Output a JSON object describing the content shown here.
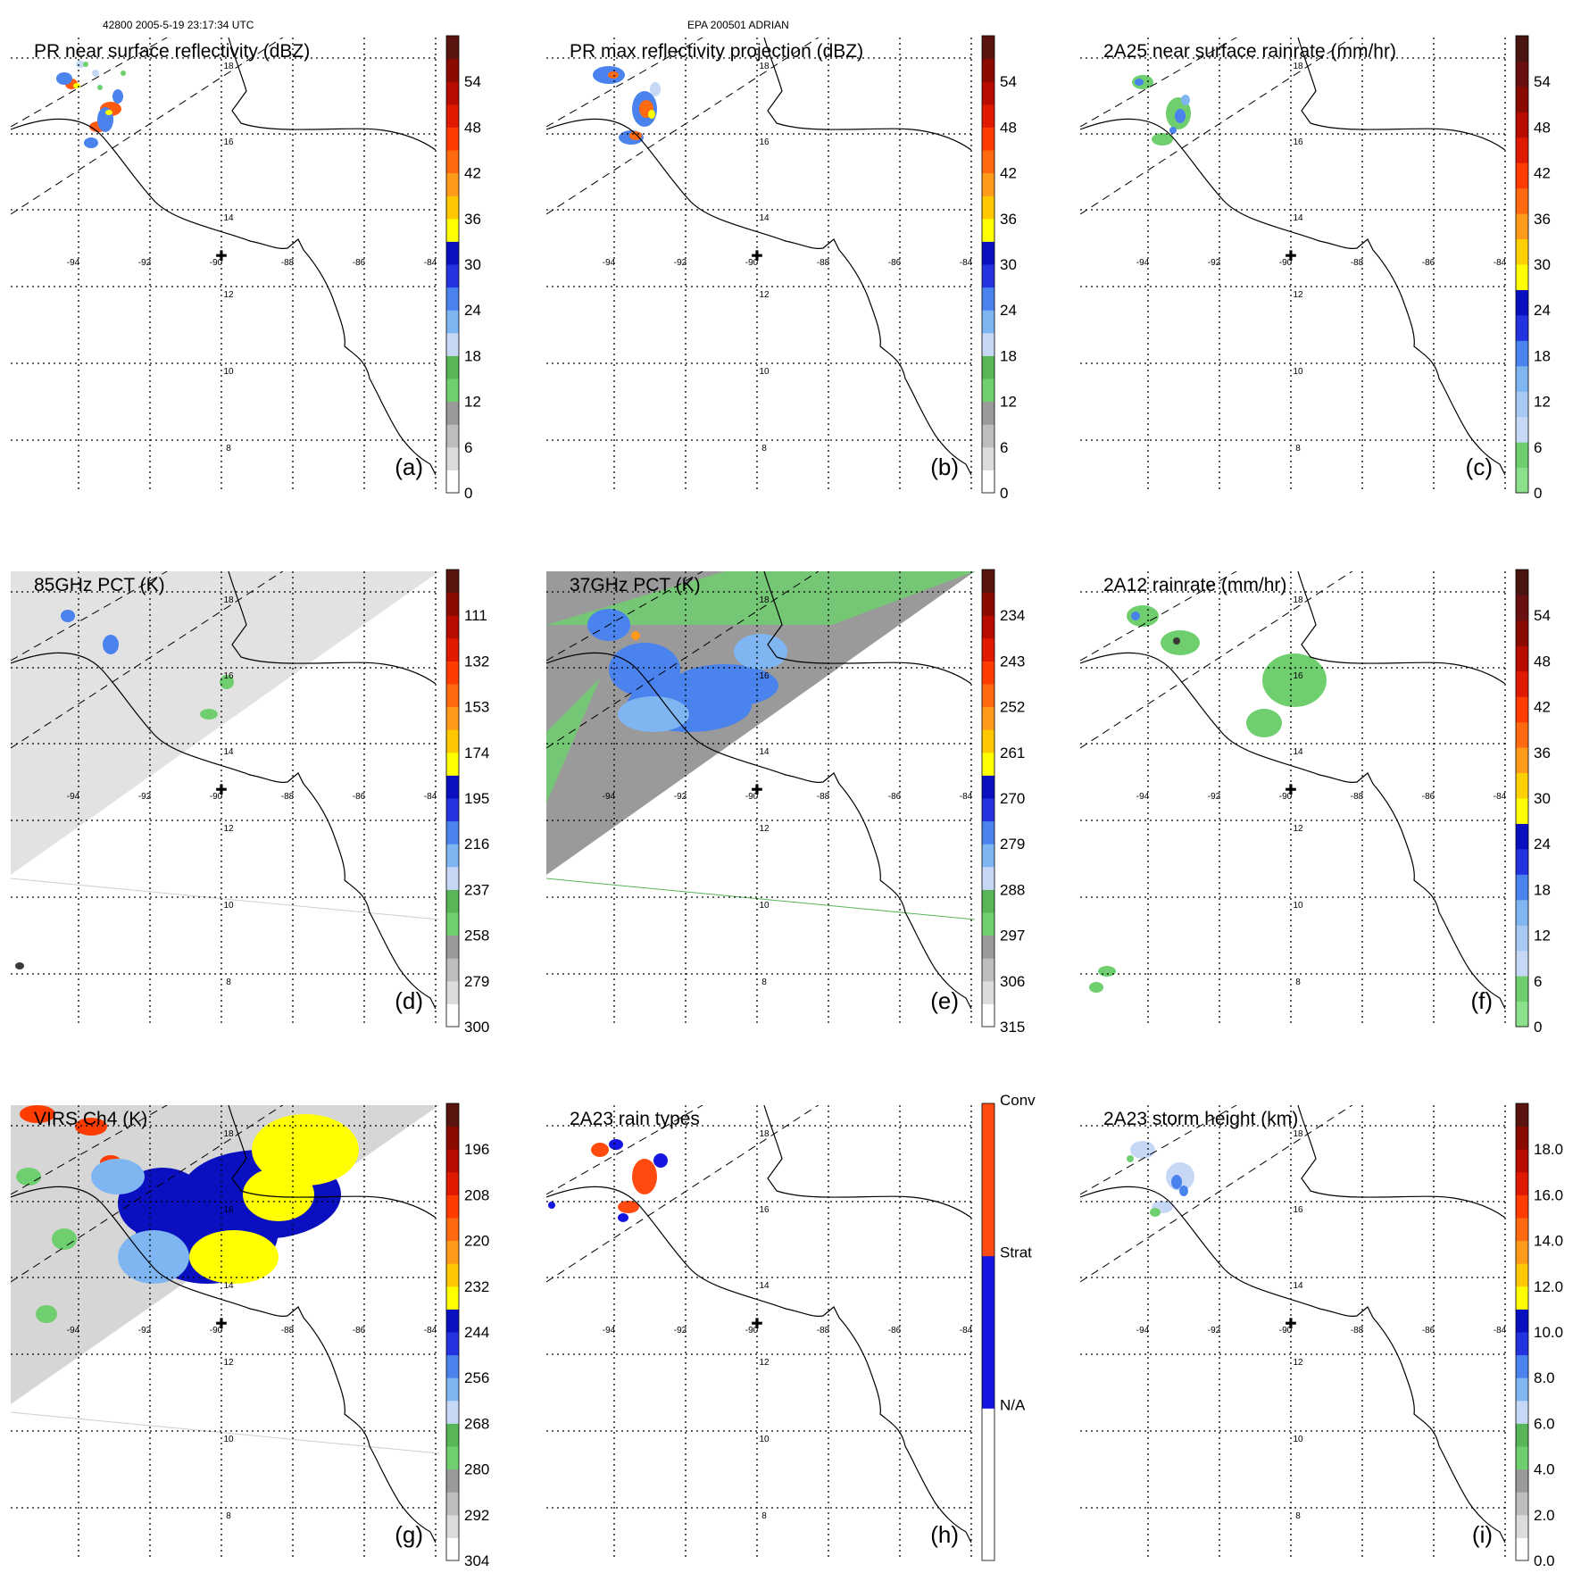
{
  "header": {
    "orbit_time": "42800 2005-5-19 23:17:34 UTC",
    "storm": "EPA 200501 ADRIAN"
  },
  "map": {
    "lon_labels": [
      "-94",
      "-92",
      "-90",
      "-88",
      "-86",
      "-84"
    ],
    "lat_labels": [
      "18",
      "16",
      "14",
      "12",
      "10",
      "8"
    ]
  },
  "panels": [
    {
      "id": "a",
      "title": "PR near surface reflectivity (dBZ)",
      "letter": "(a)",
      "colorbar": [
        "0",
        "6",
        "12",
        "18",
        "24",
        "30",
        "36",
        "42",
        "48",
        "54"
      ],
      "palette": [
        "#ffffff",
        "#dcdcdc",
        "#bdbdbd",
        "#9a9a9a",
        "#6fcf6f",
        "#58b558",
        "#c6d8f6",
        "#7fb6f2",
        "#4a82ee",
        "#2433e0",
        "#0a10c0",
        "#ffff00",
        "#ffc800",
        "#ff9a1a",
        "#ff6a10",
        "#ff3c00",
        "#e01a00",
        "#b80c00",
        "#8a0a00",
        "#5a1410"
      ]
    },
    {
      "id": "b",
      "title": "PR max reflectivity projection (dBZ)",
      "letter": "(b)",
      "colorbar": [
        "0",
        "6",
        "12",
        "18",
        "24",
        "30",
        "36",
        "42",
        "48",
        "54"
      ],
      "palette": [
        "#ffffff",
        "#dcdcdc",
        "#bdbdbd",
        "#9a9a9a",
        "#6fcf6f",
        "#58b558",
        "#c6d8f6",
        "#7fb6f2",
        "#4a82ee",
        "#2433e0",
        "#0a10c0",
        "#ffff00",
        "#ffc800",
        "#ff9a1a",
        "#ff6a10",
        "#ff3c00",
        "#e01a00",
        "#b80c00",
        "#8a0a00",
        "#5a1410"
      ]
    },
    {
      "id": "c",
      "title": "2A25 near surface rainrate (mm/hr)",
      "letter": "(c)",
      "colorbar": [
        "0",
        "6",
        "12",
        "18",
        "24",
        "30",
        "36",
        "42",
        "48",
        "54"
      ],
      "palette": [
        "#8be08b",
        "#6fcf6f",
        "#c6d8f6",
        "#a8c8f4",
        "#7fb6f2",
        "#4a82ee",
        "#2433e0",
        "#0a10c0",
        "#ffff00",
        "#ffd000",
        "#ff9a1a",
        "#ff6a10",
        "#ff3c00",
        "#e01a00",
        "#b80c00",
        "#8a0a00",
        "#6a1010",
        "#4a1410"
      ]
    },
    {
      "id": "d",
      "title": "85GHz PCT (K)",
      "letter": "(d)",
      "colorbar": [
        "300",
        "279",
        "258",
        "237",
        "216",
        "195",
        "174",
        "153",
        "132",
        "111"
      ],
      "palette": [
        "#ffffff",
        "#dcdcdc",
        "#bdbdbd",
        "#9a9a9a",
        "#6fcf6f",
        "#58b558",
        "#c6d8f6",
        "#7fb6f2",
        "#4a82ee",
        "#2433e0",
        "#0a10c0",
        "#ffff00",
        "#ffc800",
        "#ff9a1a",
        "#ff6a10",
        "#ff3c00",
        "#e01a00",
        "#b80c00",
        "#8a0a00",
        "#5a1410"
      ]
    },
    {
      "id": "e",
      "title": "37GHz PCT (K)",
      "letter": "(e)",
      "colorbar": [
        "315",
        "306",
        "297",
        "288",
        "279",
        "270",
        "261",
        "252",
        "243",
        "234"
      ],
      "palette": [
        "#ffffff",
        "#dcdcdc",
        "#bdbdbd",
        "#9a9a9a",
        "#6fcf6f",
        "#58b558",
        "#c6d8f6",
        "#7fb6f2",
        "#4a82ee",
        "#2433e0",
        "#0a10c0",
        "#ffff00",
        "#ffc800",
        "#ff9a1a",
        "#ff6a10",
        "#ff3c00",
        "#e01a00",
        "#b80c00",
        "#8a0a00",
        "#5a1410"
      ]
    },
    {
      "id": "f",
      "title": "2A12 rainrate (mm/hr)",
      "letter": "(f)",
      "colorbar": [
        "0",
        "6",
        "12",
        "18",
        "24",
        "30",
        "36",
        "42",
        "48",
        "54"
      ],
      "palette": [
        "#8be08b",
        "#6fcf6f",
        "#c6d8f6",
        "#a8c8f4",
        "#7fb6f2",
        "#4a82ee",
        "#2433e0",
        "#0a10c0",
        "#ffff00",
        "#ffd000",
        "#ff9a1a",
        "#ff6a10",
        "#ff3c00",
        "#e01a00",
        "#b80c00",
        "#8a0a00",
        "#6a1010",
        "#4a1410"
      ]
    },
    {
      "id": "g",
      "title": "VIRS Ch4 (K)",
      "letter": "(g)",
      "colorbar": [
        "304",
        "292",
        "280",
        "268",
        "256",
        "244",
        "232",
        "220",
        "208",
        "196"
      ],
      "palette": [
        "#ffffff",
        "#dcdcdc",
        "#bdbdbd",
        "#9a9a9a",
        "#6fcf6f",
        "#58b558",
        "#c6d8f6",
        "#7fb6f2",
        "#4a82ee",
        "#2433e0",
        "#0a10c0",
        "#ffff00",
        "#ffc800",
        "#ff9a1a",
        "#ff6a10",
        "#ff3c00",
        "#e01a00",
        "#b80c00",
        "#8a0a00",
        "#5a1410"
      ]
    },
    {
      "id": "h",
      "title": "2A23 rain types",
      "letter": "(h)",
      "colorbar": [
        "N/A",
        "Strat",
        "Conv"
      ],
      "palette": [
        "#ffffff",
        "#1515e0",
        "#ff4a10"
      ]
    },
    {
      "id": "i",
      "title": "2A23 storm height (km)",
      "letter": "(i)",
      "colorbar": [
        "0.0",
        "2.0",
        "4.0",
        "6.0",
        "8.0",
        "10.0",
        "12.0",
        "14.0",
        "16.0",
        "18.0"
      ],
      "palette": [
        "#ffffff",
        "#dcdcdc",
        "#bdbdbd",
        "#9a9a9a",
        "#6fcf6f",
        "#58b558",
        "#c6d8f6",
        "#7fb6f2",
        "#4a82ee",
        "#2433e0",
        "#0a10c0",
        "#ffff00",
        "#ffc800",
        "#ff9a1a",
        "#ff6a10",
        "#ff3c00",
        "#e01a00",
        "#b80c00",
        "#8a0a00",
        "#5a1410"
      ]
    }
  ]
}
